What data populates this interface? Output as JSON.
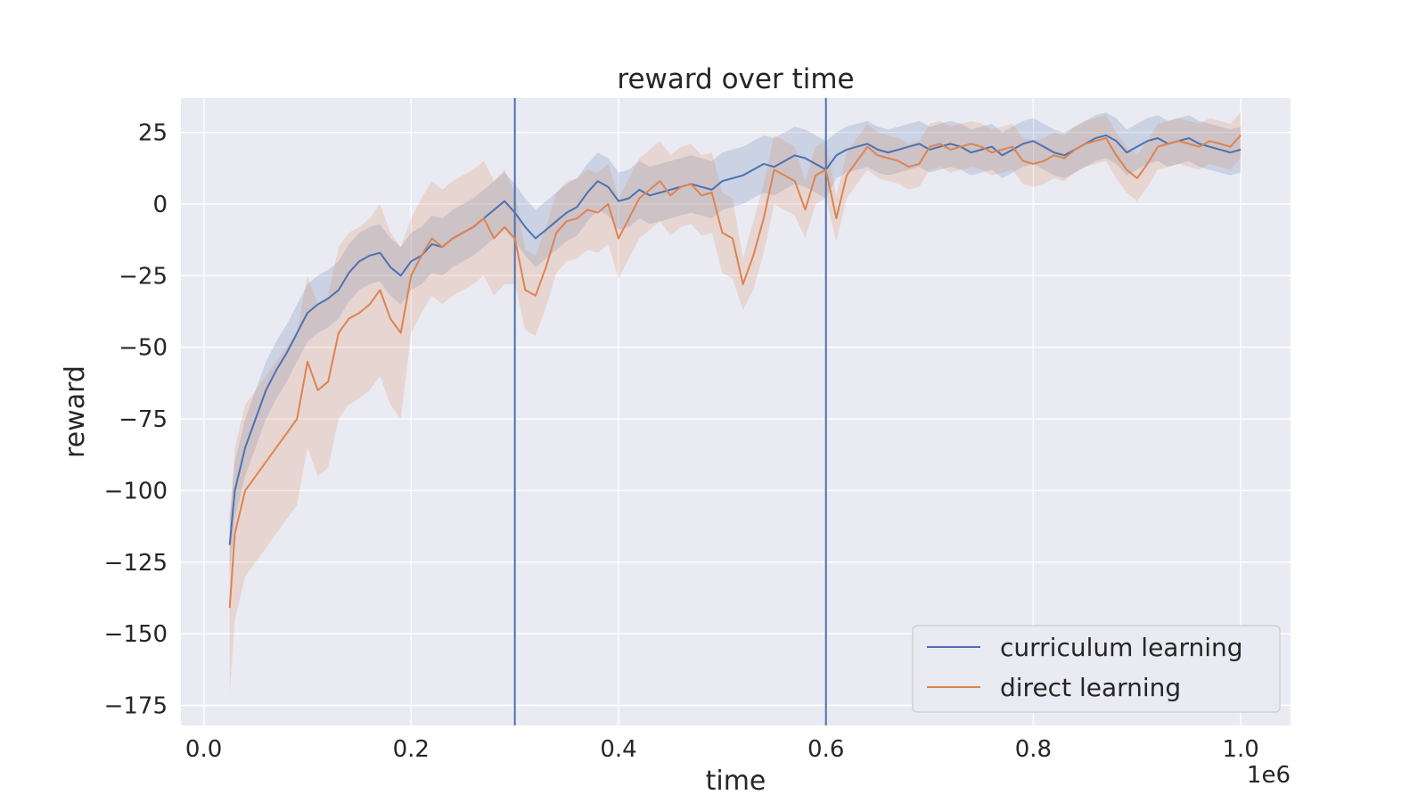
{
  "chart_data": {
    "type": "line",
    "title": "reward over time",
    "xlabel": "time",
    "ylabel": "reward",
    "x_offset_label": "1e6",
    "xlim": [
      -0.022,
      1.048
    ],
    "ylim": [
      -182,
      37
    ],
    "x_ticks": [
      0.0,
      0.2,
      0.4,
      0.6,
      0.8,
      1.0
    ],
    "x_tick_labels": [
      "0.0",
      "0.2",
      "0.4",
      "0.6",
      "0.8",
      "1.0"
    ],
    "y_ticks": [
      25,
      0,
      -25,
      -50,
      -75,
      -100,
      -125,
      -150,
      -175
    ],
    "y_tick_labels": [
      "25",
      "0",
      "−25",
      "−50",
      "−75",
      "−100",
      "−125",
      "−150",
      "−175"
    ],
    "grid": true,
    "legend_position": "bottom-right",
    "vertical_lines": [
      {
        "x": 0.3,
        "color": "#4c72b0"
      },
      {
        "x": 0.6,
        "color": "#4c72b0"
      }
    ],
    "series": [
      {
        "name": "curriculum learning",
        "color": "#4c72b0",
        "x": [
          0.025,
          0.03,
          0.04,
          0.05,
          0.06,
          0.07,
          0.08,
          0.09,
          0.1,
          0.11,
          0.12,
          0.13,
          0.14,
          0.15,
          0.16,
          0.17,
          0.18,
          0.19,
          0.2,
          0.21,
          0.22,
          0.23,
          0.24,
          0.25,
          0.26,
          0.27,
          0.28,
          0.29,
          0.3,
          0.31,
          0.32,
          0.33,
          0.34,
          0.35,
          0.36,
          0.37,
          0.38,
          0.39,
          0.4,
          0.41,
          0.42,
          0.43,
          0.44,
          0.45,
          0.46,
          0.47,
          0.48,
          0.49,
          0.5,
          0.51,
          0.52,
          0.53,
          0.54,
          0.55,
          0.56,
          0.57,
          0.58,
          0.59,
          0.6,
          0.61,
          0.62,
          0.63,
          0.64,
          0.65,
          0.66,
          0.67,
          0.68,
          0.69,
          0.7,
          0.71,
          0.72,
          0.73,
          0.74,
          0.75,
          0.76,
          0.77,
          0.78,
          0.79,
          0.8,
          0.81,
          0.82,
          0.83,
          0.84,
          0.85,
          0.86,
          0.87,
          0.88,
          0.89,
          0.9,
          0.91,
          0.92,
          0.93,
          0.94,
          0.95,
          0.96,
          0.97,
          0.98,
          0.99,
          1.0
        ],
        "y": [
          -119,
          -100,
          -85,
          -75,
          -65,
          -58,
          -52,
          -45,
          -38,
          -35,
          -33,
          -30,
          -24,
          -20,
          -18,
          -17,
          -22,
          -25,
          -20,
          -18,
          -14,
          -15,
          -12,
          -10,
          -8,
          -5,
          -2,
          1,
          -3,
          -8,
          -12,
          -9,
          -6,
          -3,
          -1,
          4,
          8,
          6,
          1,
          2,
          5,
          3,
          4,
          5,
          6,
          7,
          6,
          5,
          8,
          9,
          10,
          12,
          14,
          13,
          15,
          17,
          16,
          14,
          12,
          17,
          19,
          20,
          21,
          19,
          18,
          19,
          20,
          21,
          19,
          20,
          21,
          20,
          18,
          19,
          20,
          17,
          19,
          21,
          22,
          20,
          18,
          17,
          19,
          21,
          23,
          24,
          22,
          18,
          20,
          22,
          23,
          21,
          22,
          23,
          21,
          20,
          19,
          18,
          19
        ],
        "y_low": [
          -129,
          -110,
          -95,
          -85,
          -75,
          -68,
          -62,
          -55,
          -48,
          -45,
          -43,
          -40,
          -34,
          -30,
          -28,
          -27,
          -32,
          -35,
          -30,
          -28,
          -24,
          -25,
          -22,
          -20,
          -18,
          -15,
          -12,
          -9,
          -13,
          -18,
          -22,
          -19,
          -16,
          -13,
          -11,
          -6,
          -2,
          -4,
          -9,
          -8,
          -5,
          -7,
          -6,
          -5,
          -4,
          -3,
          -4,
          -5,
          -2,
          -1,
          0,
          2,
          4,
          3,
          5,
          7,
          6,
          4,
          2,
          9,
          11,
          12,
          13,
          11,
          10,
          11,
          12,
          13,
          11,
          12,
          13,
          12,
          10,
          11,
          12,
          9,
          11,
          13,
          14,
          12,
          10,
          9,
          11,
          13,
          15,
          16,
          14,
          10,
          12,
          14,
          15,
          13,
          14,
          15,
          13,
          12,
          11,
          10,
          11
        ],
        "y_high": [
          -109,
          -90,
          -75,
          -65,
          -55,
          -48,
          -42,
          -35,
          -28,
          -25,
          -23,
          -20,
          -14,
          -10,
          -8,
          -7,
          -12,
          -15,
          -10,
          -8,
          -4,
          -5,
          -2,
          0,
          2,
          5,
          8,
          11,
          7,
          2,
          -2,
          1,
          4,
          7,
          9,
          14,
          18,
          16,
          11,
          12,
          15,
          13,
          14,
          15,
          16,
          17,
          16,
          15,
          18,
          19,
          20,
          22,
          24,
          23,
          25,
          27,
          26,
          24,
          22,
          25,
          27,
          28,
          29,
          27,
          26,
          27,
          28,
          29,
          27,
          28,
          29,
          28,
          26,
          27,
          28,
          25,
          27,
          29,
          30,
          28,
          26,
          25,
          27,
          29,
          31,
          32,
          30,
          26,
          28,
          30,
          31,
          29,
          30,
          31,
          29,
          28,
          27,
          26,
          27
        ]
      },
      {
        "name": "direct learning",
        "color": "#dd8452",
        "x": [
          0.025,
          0.03,
          0.04,
          0.05,
          0.06,
          0.07,
          0.08,
          0.09,
          0.1,
          0.11,
          0.12,
          0.13,
          0.14,
          0.15,
          0.16,
          0.17,
          0.18,
          0.19,
          0.2,
          0.21,
          0.22,
          0.23,
          0.24,
          0.25,
          0.26,
          0.27,
          0.28,
          0.29,
          0.3,
          0.31,
          0.32,
          0.33,
          0.34,
          0.35,
          0.36,
          0.37,
          0.38,
          0.39,
          0.4,
          0.41,
          0.42,
          0.43,
          0.44,
          0.45,
          0.46,
          0.47,
          0.48,
          0.49,
          0.5,
          0.51,
          0.52,
          0.53,
          0.54,
          0.55,
          0.56,
          0.57,
          0.58,
          0.59,
          0.6,
          0.61,
          0.62,
          0.63,
          0.64,
          0.65,
          0.66,
          0.67,
          0.68,
          0.69,
          0.7,
          0.71,
          0.72,
          0.73,
          0.74,
          0.75,
          0.76,
          0.77,
          0.78,
          0.79,
          0.8,
          0.81,
          0.82,
          0.83,
          0.84,
          0.85,
          0.86,
          0.87,
          0.88,
          0.89,
          0.9,
          0.91,
          0.92,
          0.93,
          0.94,
          0.95,
          0.96,
          0.97,
          0.98,
          0.99,
          1.0
        ],
        "y": [
          -141,
          -115,
          -100,
          -95,
          -90,
          -85,
          -80,
          -75,
          -55,
          -65,
          -62,
          -45,
          -40,
          -38,
          -35,
          -30,
          -40,
          -45,
          -25,
          -18,
          -12,
          -15,
          -12,
          -10,
          -8,
          -5,
          -12,
          -8,
          -12,
          -30,
          -32,
          -22,
          -10,
          -6,
          -5,
          -2,
          -3,
          0,
          -12,
          -5,
          2,
          5,
          8,
          3,
          6,
          7,
          3,
          4,
          -10,
          -12,
          -28,
          -18,
          -5,
          12,
          10,
          8,
          -2,
          10,
          12,
          -5,
          10,
          15,
          20,
          17,
          16,
          15,
          13,
          14,
          20,
          21,
          19,
          20,
          21,
          20,
          18,
          19,
          20,
          15,
          14,
          15,
          17,
          16,
          19,
          21,
          22,
          23,
          17,
          12,
          9,
          14,
          20,
          21,
          22,
          21,
          20,
          22,
          21,
          20,
          24
        ],
        "y_low": [
          -171,
          -145,
          -130,
          -125,
          -120,
          -115,
          -110,
          -105,
          -85,
          -95,
          -92,
          -75,
          -70,
          -68,
          -65,
          -60,
          -70,
          -75,
          -45,
          -38,
          -32,
          -35,
          -32,
          -30,
          -28,
          -25,
          -32,
          -28,
          -28,
          -44,
          -46,
          -36,
          -24,
          -20,
          -19,
          -16,
          -17,
          -14,
          -26,
          -19,
          -12,
          -9,
          -6,
          -11,
          -8,
          -7,
          -11,
          -10,
          -24,
          -26,
          -37,
          -30,
          -17,
          0,
          -2,
          -4,
          -12,
          0,
          2,
          -13,
          2,
          7,
          12,
          9,
          8,
          7,
          5,
          6,
          12,
          13,
          11,
          12,
          13,
          12,
          10,
          11,
          12,
          7,
          6,
          7,
          9,
          8,
          11,
          13,
          14,
          15,
          9,
          4,
          1,
          6,
          12,
          13,
          14,
          13,
          12,
          14,
          13,
          12,
          16
        ],
        "y_high": [
          -111,
          -85,
          -70,
          -65,
          -60,
          -55,
          -50,
          -45,
          -25,
          -35,
          -32,
          -15,
          -10,
          -8,
          -5,
          0,
          -10,
          -15,
          -5,
          2,
          8,
          5,
          8,
          10,
          12,
          15,
          8,
          12,
          4,
          -16,
          -18,
          -8,
          4,
          8,
          9,
          12,
          11,
          14,
          2,
          9,
          16,
          19,
          22,
          17,
          20,
          21,
          17,
          18,
          4,
          2,
          -19,
          -6,
          7,
          24,
          22,
          20,
          8,
          20,
          22,
          3,
          18,
          23,
          28,
          25,
          24,
          23,
          21,
          22,
          28,
          29,
          27,
          28,
          29,
          28,
          26,
          27,
          28,
          23,
          22,
          23,
          25,
          24,
          27,
          29,
          30,
          31,
          25,
          20,
          17,
          22,
          28,
          29,
          30,
          29,
          28,
          30,
          29,
          28,
          32
        ]
      }
    ]
  }
}
